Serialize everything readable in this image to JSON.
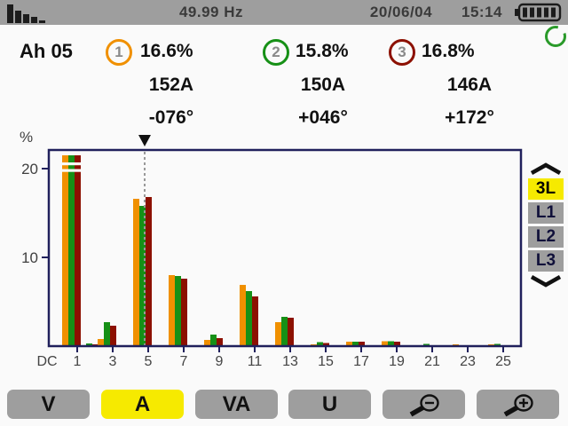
{
  "topbar": {
    "frequency": "49.99 Hz",
    "date": "20/06/04",
    "time": "15:14",
    "battery_bars": 5
  },
  "readings": {
    "label": "Ah 05",
    "phases": [
      {
        "id": "1",
        "percent": "16.6%",
        "amps": "152A",
        "angle": "-076°",
        "color": "#f09000"
      },
      {
        "id": "2",
        "percent": "15.8%",
        "amps": "150A",
        "angle": "+046°",
        "color": "#169016"
      },
      {
        "id": "3",
        "percent": "16.8%",
        "amps": "146A",
        "angle": "+172°",
        "color": "#8c1000"
      }
    ]
  },
  "chart_data": {
    "type": "bar",
    "ylabel": "%",
    "y_ticks": [
      10,
      20
    ],
    "ylim": [
      0,
      22
    ],
    "x_tick_labels": [
      "DC",
      "1",
      "3",
      "5",
      "7",
      "9",
      "11",
      "13",
      "15",
      "17",
      "19",
      "21",
      "23",
      "25"
    ],
    "cursor_harmonic": 5,
    "fundamental_offscale": true,
    "axis_color": "#20205c",
    "series": [
      {
        "name": "Phase 1",
        "color": "#f09000",
        "values": [
          0,
          100,
          0,
          0.8,
          0,
          16.6,
          0,
          8.0,
          0,
          0.7,
          0,
          6.9,
          0,
          2.7,
          0,
          0.2,
          0,
          0.5,
          0,
          0.55,
          0,
          0,
          0,
          0.2,
          0,
          0.2
        ]
      },
      {
        "name": "Phase 2",
        "color": "#169016",
        "values": [
          0,
          100,
          0.3,
          2.7,
          0,
          15.8,
          0,
          7.9,
          0,
          1.3,
          0,
          6.2,
          0,
          3.3,
          0,
          0.45,
          0,
          0.5,
          0,
          0.55,
          0,
          0.25,
          0,
          0,
          0,
          0.25
        ]
      },
      {
        "name": "Phase 3",
        "color": "#8c1000",
        "values": [
          0,
          100,
          0.2,
          2.3,
          0,
          16.8,
          0,
          7.6,
          0,
          0.9,
          0,
          5.6,
          0,
          3.2,
          0,
          0.35,
          0,
          0.5,
          0,
          0.5,
          0,
          0,
          0,
          0,
          0,
          0
        ]
      }
    ]
  },
  "phase_selector": {
    "selected_bg": "#f6ea00",
    "option_bg": "#9e9e9e",
    "options": [
      {
        "label": "3L",
        "selected": true
      },
      {
        "label": "L1",
        "selected": false
      },
      {
        "label": "L2",
        "selected": false
      },
      {
        "label": "L3",
        "selected": false
      }
    ]
  },
  "buttons": {
    "selected_bg": "#f6ea00",
    "bg": "#9e9e9e",
    "items": [
      {
        "label": "V",
        "selected": false
      },
      {
        "label": "A",
        "selected": true
      },
      {
        "label": "VA",
        "selected": false
      },
      {
        "label": "U",
        "selected": false
      },
      {
        "label": "",
        "icon": "zoom-out",
        "selected": false
      },
      {
        "label": "",
        "icon": "zoom-in",
        "selected": false
      }
    ]
  }
}
